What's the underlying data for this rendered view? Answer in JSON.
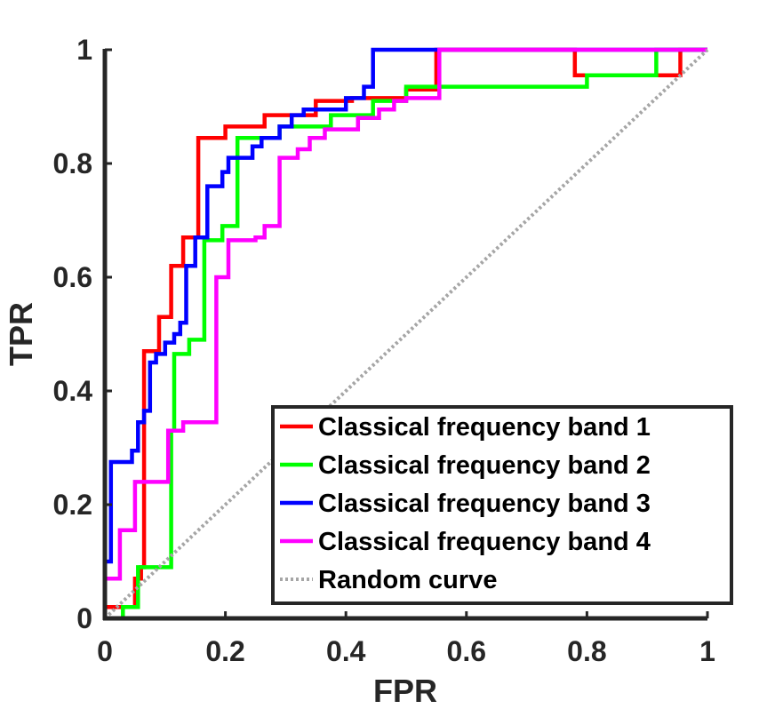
{
  "chart_data": {
    "type": "line",
    "xlabel": "FPR",
    "ylabel": "TPR",
    "xlim": [
      0,
      1
    ],
    "ylim": [
      0,
      1
    ],
    "x_ticks": [
      "0",
      "0.2",
      "0.4",
      "0.6",
      "0.8",
      "1"
    ],
    "y_ticks": [
      "0",
      "0.2",
      "0.4",
      "0.6",
      "0.8",
      "1"
    ],
    "grid": false,
    "legend_position": "bottom-right",
    "series": [
      {
        "name": "Classical frequency band 1",
        "color": "#ff0000",
        "style": "solid",
        "points": [
          [
            0,
            0
          ],
          [
            0,
            0.02
          ],
          [
            0.05,
            0.02
          ],
          [
            0.05,
            0.07
          ],
          [
            0.06,
            0.07
          ],
          [
            0.06,
            0.09
          ],
          [
            0.065,
            0.09
          ],
          [
            0.065,
            0.47
          ],
          [
            0.09,
            0.47
          ],
          [
            0.09,
            0.53
          ],
          [
            0.11,
            0.53
          ],
          [
            0.11,
            0.62
          ],
          [
            0.13,
            0.62
          ],
          [
            0.13,
            0.67
          ],
          [
            0.155,
            0.67
          ],
          [
            0.155,
            0.845
          ],
          [
            0.2,
            0.845
          ],
          [
            0.2,
            0.865
          ],
          [
            0.265,
            0.865
          ],
          [
            0.265,
            0.885
          ],
          [
            0.35,
            0.885
          ],
          [
            0.35,
            0.91
          ],
          [
            0.41,
            0.91
          ],
          [
            0.41,
            0.915
          ],
          [
            0.5,
            0.915
          ],
          [
            0.5,
            0.93
          ],
          [
            0.55,
            0.93
          ],
          [
            0.55,
            1
          ],
          [
            0.78,
            1
          ],
          [
            0.78,
            0.955
          ],
          [
            0.8,
            0.955
          ],
          [
            0.8,
            0.955
          ],
          [
            0.93,
            0.955
          ],
          [
            0.93,
            0.955
          ],
          [
            0.955,
            0.955
          ],
          [
            0.955,
            1
          ],
          [
            1,
            1
          ]
        ]
      },
      {
        "name": "Classical frequency band 2",
        "color": "#00ff00",
        "style": "solid",
        "points": [
          [
            0,
            0
          ],
          [
            0.03,
            0
          ],
          [
            0.03,
            0.02
          ],
          [
            0.055,
            0.02
          ],
          [
            0.055,
            0.09
          ],
          [
            0.11,
            0.09
          ],
          [
            0.11,
            0.33
          ],
          [
            0.115,
            0.33
          ],
          [
            0.115,
            0.465
          ],
          [
            0.14,
            0.465
          ],
          [
            0.14,
            0.49
          ],
          [
            0.165,
            0.49
          ],
          [
            0.165,
            0.665
          ],
          [
            0.195,
            0.665
          ],
          [
            0.195,
            0.69
          ],
          [
            0.22,
            0.69
          ],
          [
            0.22,
            0.845
          ],
          [
            0.29,
            0.845
          ],
          [
            0.29,
            0.865
          ],
          [
            0.375,
            0.865
          ],
          [
            0.375,
            0.885
          ],
          [
            0.445,
            0.885
          ],
          [
            0.445,
            0.91
          ],
          [
            0.5,
            0.91
          ],
          [
            0.5,
            0.935
          ],
          [
            0.8,
            0.935
          ],
          [
            0.8,
            0.955
          ],
          [
            0.915,
            0.955
          ],
          [
            0.915,
            1
          ],
          [
            1,
            1
          ]
        ]
      },
      {
        "name": "Classical frequency band 3",
        "color": "#0000ff",
        "style": "solid",
        "points": [
          [
            0,
            0
          ],
          [
            0,
            0.1
          ],
          [
            0.01,
            0.1
          ],
          [
            0.01,
            0.275
          ],
          [
            0.045,
            0.275
          ],
          [
            0.045,
            0.295
          ],
          [
            0.055,
            0.295
          ],
          [
            0.055,
            0.345
          ],
          [
            0.065,
            0.345
          ],
          [
            0.065,
            0.365
          ],
          [
            0.075,
            0.365
          ],
          [
            0.075,
            0.45
          ],
          [
            0.085,
            0.45
          ],
          [
            0.085,
            0.465
          ],
          [
            0.1,
            0.465
          ],
          [
            0.1,
            0.485
          ],
          [
            0.115,
            0.485
          ],
          [
            0.115,
            0.5
          ],
          [
            0.125,
            0.5
          ],
          [
            0.125,
            0.52
          ],
          [
            0.135,
            0.52
          ],
          [
            0.135,
            0.62
          ],
          [
            0.15,
            0.62
          ],
          [
            0.15,
            0.67
          ],
          [
            0.17,
            0.67
          ],
          [
            0.17,
            0.76
          ],
          [
            0.195,
            0.76
          ],
          [
            0.195,
            0.785
          ],
          [
            0.205,
            0.785
          ],
          [
            0.205,
            0.81
          ],
          [
            0.245,
            0.81
          ],
          [
            0.245,
            0.83
          ],
          [
            0.26,
            0.83
          ],
          [
            0.26,
            0.845
          ],
          [
            0.29,
            0.845
          ],
          [
            0.29,
            0.865
          ],
          [
            0.31,
            0.865
          ],
          [
            0.31,
            0.885
          ],
          [
            0.33,
            0.885
          ],
          [
            0.33,
            0.895
          ],
          [
            0.4,
            0.895
          ],
          [
            0.4,
            0.915
          ],
          [
            0.43,
            0.915
          ],
          [
            0.43,
            0.935
          ],
          [
            0.445,
            0.935
          ],
          [
            0.445,
            1
          ],
          [
            1,
            1
          ]
        ]
      },
      {
        "name": "Classical frequency band 4",
        "color": "#ff00ff",
        "style": "solid",
        "points": [
          [
            0,
            0
          ],
          [
            0,
            0.07
          ],
          [
            0.025,
            0.07
          ],
          [
            0.025,
            0.155
          ],
          [
            0.05,
            0.155
          ],
          [
            0.05,
            0.24
          ],
          [
            0.105,
            0.24
          ],
          [
            0.105,
            0.33
          ],
          [
            0.13,
            0.33
          ],
          [
            0.13,
            0.345
          ],
          [
            0.185,
            0.345
          ],
          [
            0.185,
            0.6
          ],
          [
            0.205,
            0.6
          ],
          [
            0.205,
            0.665
          ],
          [
            0.25,
            0.665
          ],
          [
            0.25,
            0.67
          ],
          [
            0.265,
            0.67
          ],
          [
            0.265,
            0.69
          ],
          [
            0.29,
            0.69
          ],
          [
            0.29,
            0.81
          ],
          [
            0.32,
            0.81
          ],
          [
            0.32,
            0.825
          ],
          [
            0.34,
            0.825
          ],
          [
            0.34,
            0.845
          ],
          [
            0.365,
            0.845
          ],
          [
            0.365,
            0.86
          ],
          [
            0.42,
            0.86
          ],
          [
            0.42,
            0.88
          ],
          [
            0.455,
            0.88
          ],
          [
            0.455,
            0.895
          ],
          [
            0.48,
            0.895
          ],
          [
            0.48,
            0.91
          ],
          [
            0.5,
            0.91
          ],
          [
            0.5,
            0.915
          ],
          [
            0.555,
            0.915
          ],
          [
            0.555,
            1
          ],
          [
            1,
            1
          ]
        ]
      },
      {
        "name": "Random curve",
        "color": "#a6a6a6",
        "style": "dotted",
        "points": [
          [
            0,
            0
          ],
          [
            1,
            1
          ]
        ]
      }
    ]
  }
}
